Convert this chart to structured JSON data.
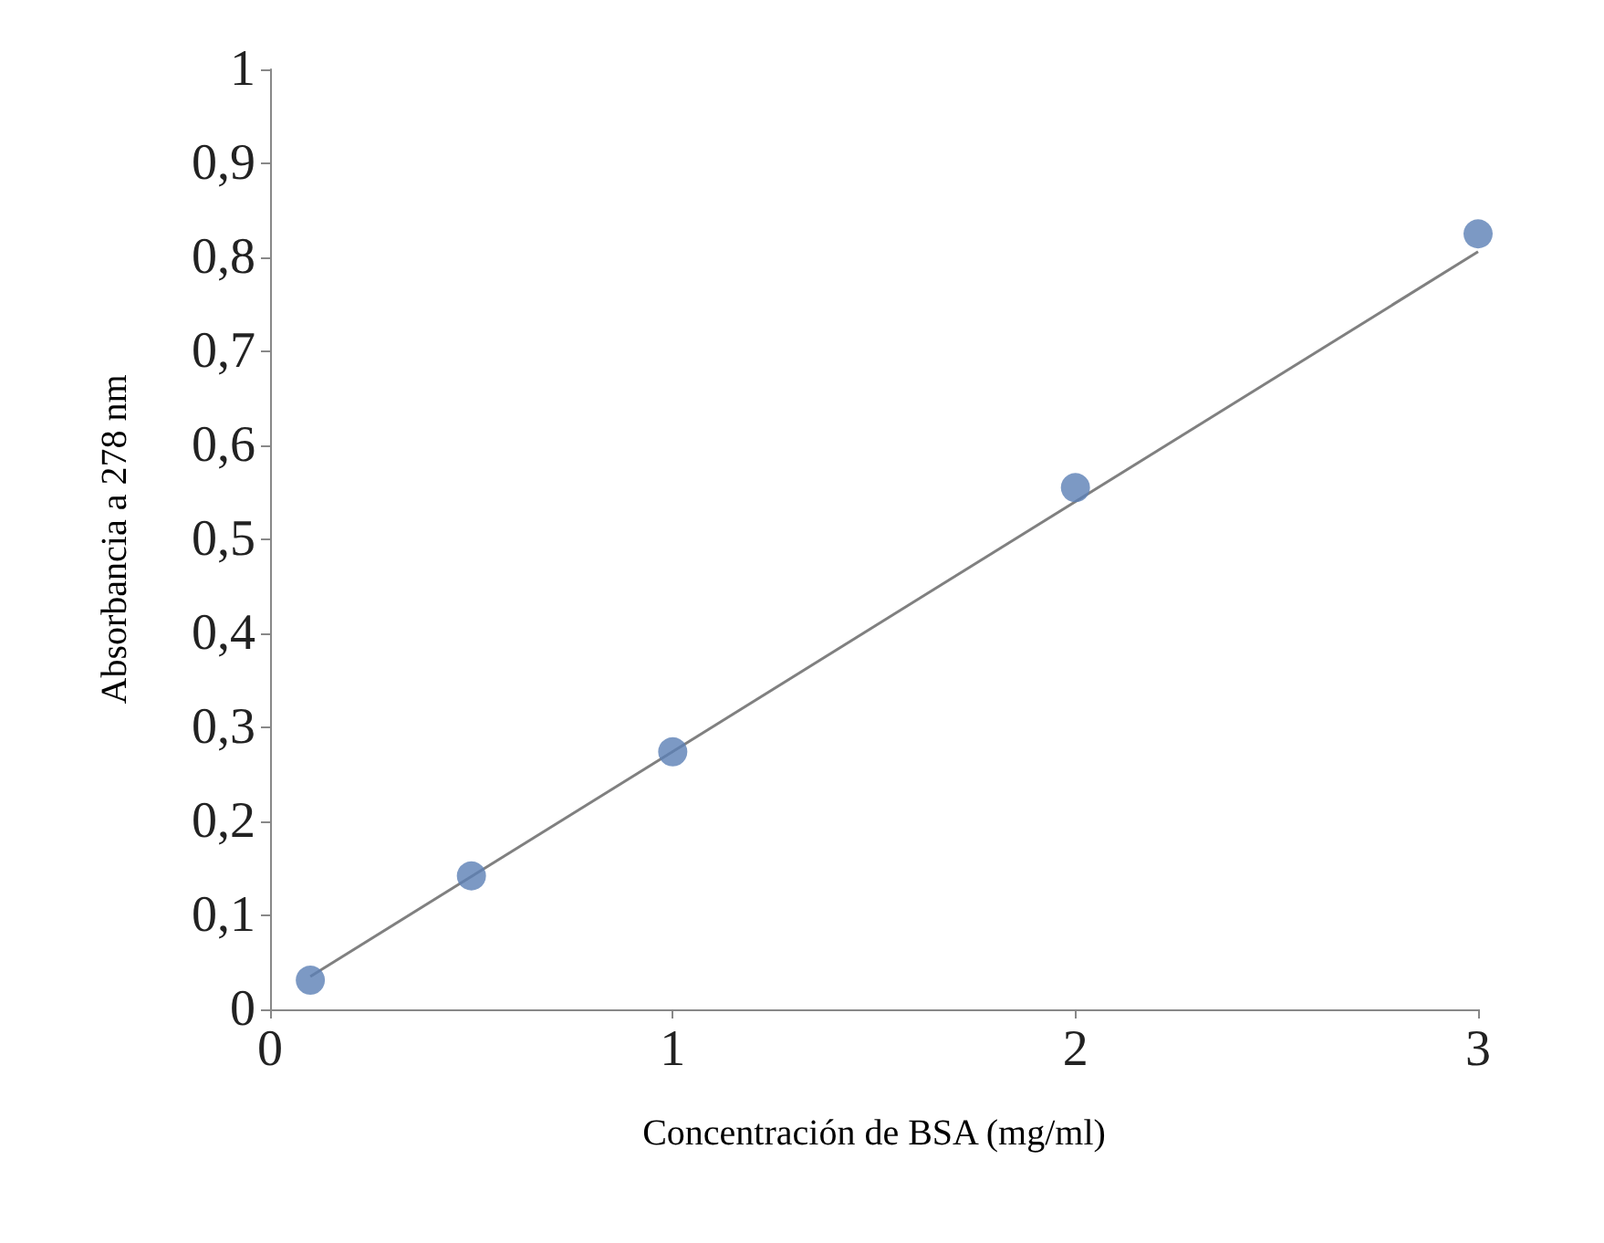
{
  "chart_data": {
    "type": "scatter",
    "xlabel": "Concentración de BSA (mg/ml)",
    "ylabel": "Absorbancia a 278 nm",
    "x": [
      0.1,
      0.5,
      1,
      2,
      3
    ],
    "series": [
      {
        "color": "#5b7fb5",
        "marker": "circle",
        "values": [
          0.031,
          0.142,
          0.274,
          0.555,
          0.825
        ]
      },
      {
        "type": "line",
        "color": "#808080",
        "marker": "none",
        "x": [
          0.1,
          3
        ],
        "values": [
          0.035,
          0.806
        ]
      }
    ],
    "xlim": [
      0,
      3
    ],
    "xticks": [
      0,
      1,
      2,
      3
    ],
    "ylim": [
      0,
      1
    ],
    "yticks": [
      0,
      {
        "value": 0.1,
        "label": "0,1"
      },
      {
        "value": 0.2,
        "label": "0,2"
      },
      {
        "value": 0.3,
        "label": "0,3"
      },
      {
        "value": 0.4,
        "label": "0,4"
      },
      {
        "value": 0.5,
        "label": "0,5"
      },
      {
        "value": 0.6,
        "label": "0,6"
      },
      {
        "value": 0.7,
        "label": "0,7"
      },
      {
        "value": 0.8,
        "label": "0,8"
      },
      {
        "value": 0.9,
        "label": "0,9"
      },
      1
    ],
    "grid": false
  }
}
